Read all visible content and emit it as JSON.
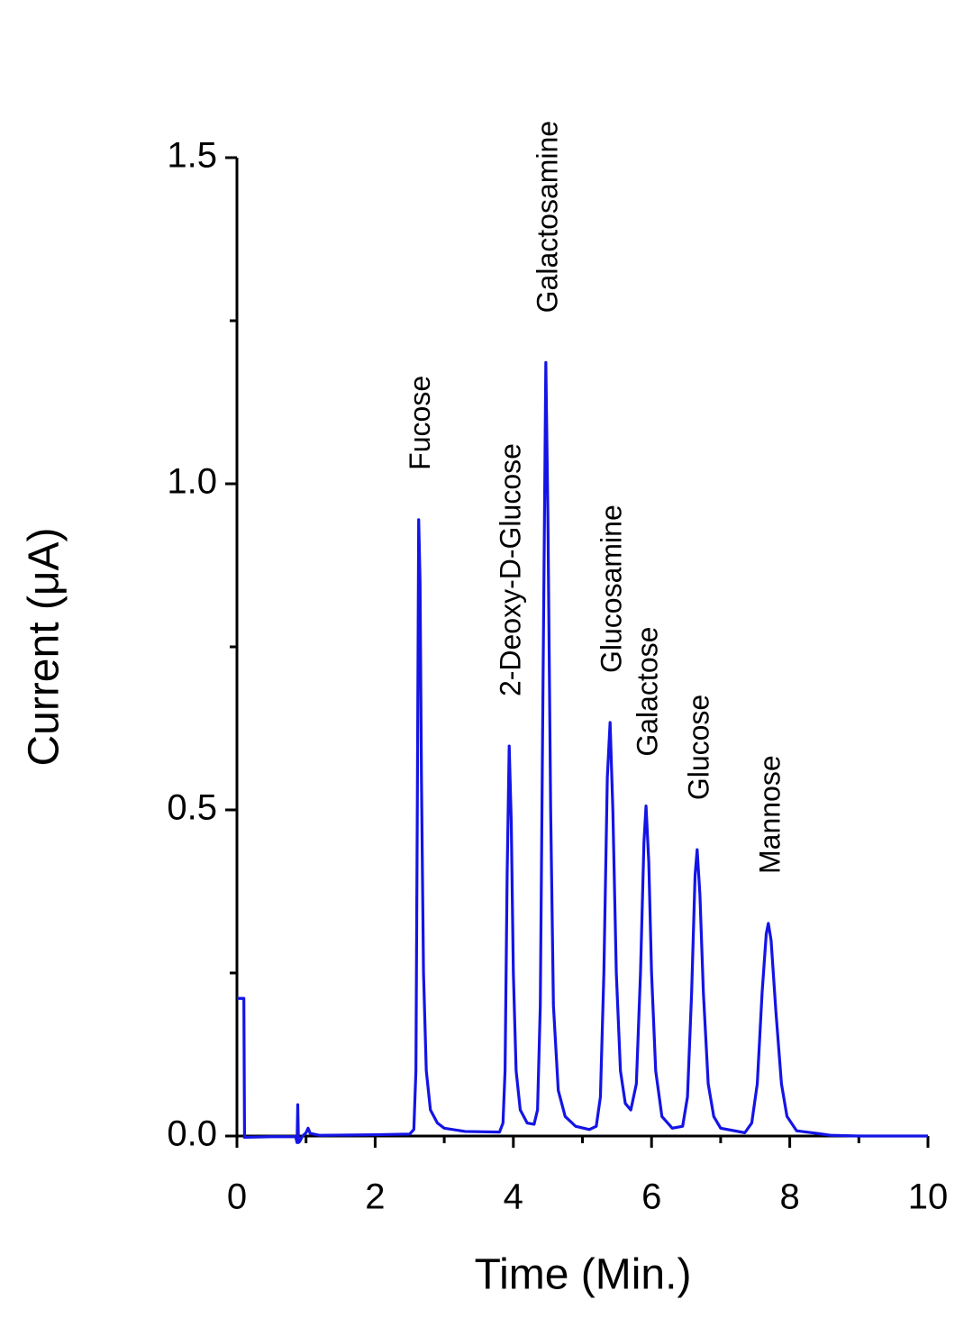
{
  "chart_data": {
    "type": "line",
    "x_label": "Time (Min.)",
    "y_label": "Current (μA)",
    "xlim": [
      0,
      10
    ],
    "ylim": [
      0,
      1.5
    ],
    "xticks": [
      0,
      2,
      4,
      6,
      8,
      10
    ],
    "xminorticks": [
      1,
      3,
      5,
      7,
      9
    ],
    "yticks": [
      {
        "value": 0,
        "label": "0.0"
      },
      0.5,
      {
        "value": 1,
        "label": "1.0"
      },
      1.5
    ],
    "yminorticks": [
      0.25,
      0.75,
      1.25
    ],
    "peak_labels": [
      "Fucose",
      "2-Deoxy-D-Glucose",
      "Galactosamine",
      "Glucosamine",
      "Galactose",
      "Glucose",
      "Mannose"
    ],
    "series": [
      {
        "color": "#1414e6",
        "x": [
          0,
          0.1,
          0.11,
          0.5,
          0.85,
          0.87,
          0.88,
          0.89,
          0.91,
          0.95,
          1.0,
          1.03,
          1.06,
          1.2,
          2.0,
          2.5,
          2.56,
          2.59,
          2.61,
          2.63,
          2.65,
          2.67,
          2.7,
          2.74,
          2.8,
          2.9,
          3.0,
          3.3,
          3.8,
          3.85,
          3.88,
          3.91,
          3.94,
          3.97,
          4.0,
          4.04,
          4.1,
          4.2,
          4.3,
          4.35,
          4.39,
          4.43,
          4.47,
          4.5,
          4.54,
          4.58,
          4.65,
          4.75,
          4.9,
          5.1,
          5.2,
          5.26,
          5.31,
          5.36,
          5.4,
          5.44,
          5.49,
          5.55,
          5.62,
          5.7,
          5.78,
          5.84,
          5.89,
          5.92,
          5.96,
          6.0,
          6.06,
          6.15,
          6.3,
          6.45,
          6.52,
          6.58,
          6.63,
          6.66,
          6.7,
          6.75,
          6.82,
          6.9,
          7.0,
          7.35,
          7.45,
          7.53,
          7.6,
          7.66,
          7.69,
          7.73,
          7.8,
          7.88,
          7.96,
          8.1,
          8.4,
          8.6,
          9.0,
          10.0
        ],
        "values": [
          0.211,
          0.211,
          -0.002,
          -0.001,
          -0.001,
          -0.01,
          0.048,
          -0.01,
          -0.008,
          0.0,
          0.005,
          0.012,
          0.004,
          0.001,
          0.002,
          0.003,
          0.01,
          0.1,
          0.5,
          0.945,
          0.85,
          0.55,
          0.25,
          0.1,
          0.04,
          0.02,
          0.012,
          0.007,
          0.006,
          0.02,
          0.1,
          0.4,
          0.598,
          0.48,
          0.25,
          0.1,
          0.04,
          0.02,
          0.018,
          0.04,
          0.2,
          0.7,
          1.186,
          0.95,
          0.5,
          0.2,
          0.07,
          0.03,
          0.015,
          0.01,
          0.015,
          0.06,
          0.25,
          0.55,
          0.634,
          0.5,
          0.25,
          0.1,
          0.05,
          0.04,
          0.08,
          0.25,
          0.45,
          0.506,
          0.42,
          0.25,
          0.1,
          0.03,
          0.012,
          0.015,
          0.06,
          0.22,
          0.4,
          0.439,
          0.37,
          0.22,
          0.08,
          0.03,
          0.012,
          0.005,
          0.02,
          0.08,
          0.22,
          0.31,
          0.326,
          0.3,
          0.19,
          0.08,
          0.03,
          0.008,
          0.004,
          0.001,
          0.0,
          0.0
        ]
      }
    ]
  }
}
